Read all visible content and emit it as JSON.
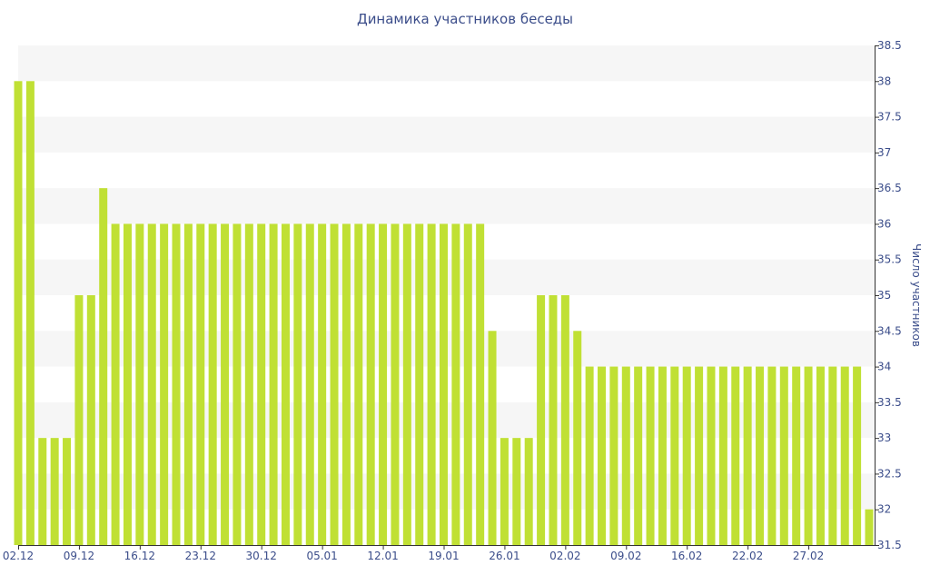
{
  "chart_data": {
    "type": "bar",
    "title": "Динамика участников беседы",
    "ylabel": "Число участников",
    "xlabel": "",
    "ylim": [
      31.5,
      38.5
    ],
    "yticks": [
      "31.5",
      "32",
      "32.5",
      "33",
      "33.5",
      "34",
      "34.5",
      "35",
      "35.5",
      "36",
      "36.5",
      "37",
      "37.5",
      "38",
      "38.5"
    ],
    "xticks": [
      {
        "label": "02.12",
        "index": 0
      },
      {
        "label": "09.12",
        "index": 5
      },
      {
        "label": "16.12",
        "index": 10
      },
      {
        "label": "23.12",
        "index": 15
      },
      {
        "label": "30.12",
        "index": 20
      },
      {
        "label": "05.01",
        "index": 25
      },
      {
        "label": "12.01",
        "index": 30
      },
      {
        "label": "19.01",
        "index": 35
      },
      {
        "label": "26.01",
        "index": 40
      },
      {
        "label": "02.02",
        "index": 45
      },
      {
        "label": "09.02",
        "index": 50
      },
      {
        "label": "16.02",
        "index": 55
      },
      {
        "label": "22.02",
        "index": 60
      },
      {
        "label": "27.02",
        "index": 65
      }
    ],
    "values": [
      38,
      38,
      33,
      33,
      33,
      35,
      35,
      36.5,
      36,
      36,
      36,
      36,
      36,
      36,
      36,
      36,
      36,
      36,
      36,
      36,
      36,
      36,
      36,
      36,
      36,
      36,
      36,
      36,
      36,
      36,
      36,
      36,
      36,
      36,
      36,
      36,
      36,
      36,
      36,
      34.5,
      33,
      33,
      33,
      35,
      35,
      35,
      34.5,
      34,
      34,
      34,
      34,
      34,
      34,
      34,
      34,
      34,
      34,
      34,
      34,
      34,
      34,
      34,
      34,
      34,
      34,
      34,
      34,
      34,
      34,
      34,
      32
    ],
    "grid": true,
    "legend": "none",
    "colors": {
      "bar": "#c0e034",
      "band": "#f6f6f6",
      "axis_text": "#3b4d8a",
      "axis_line": "#333333"
    }
  }
}
